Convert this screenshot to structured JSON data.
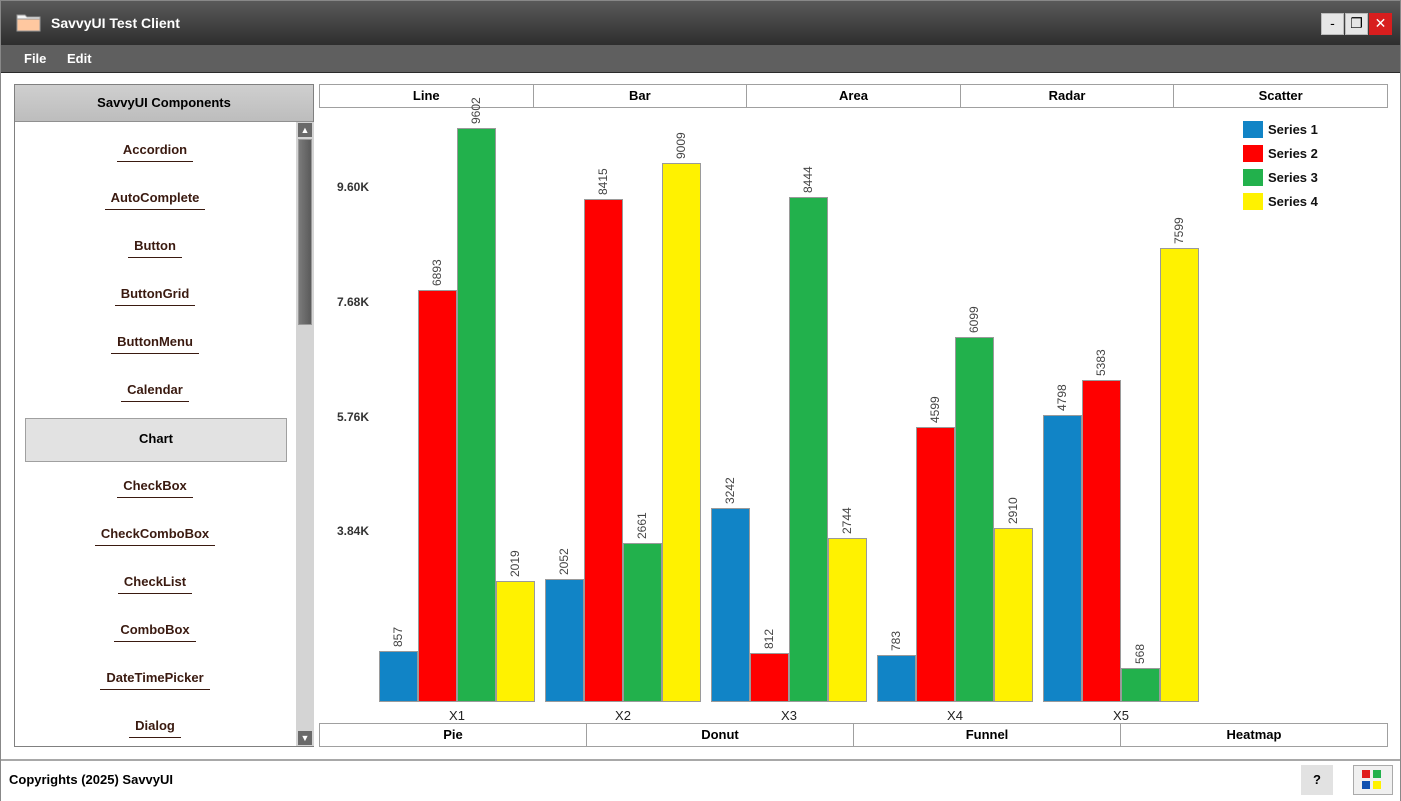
{
  "window": {
    "title": "SavvyUI Test Client",
    "buttons": {
      "minimize": "-",
      "maximize": "❐",
      "close": "✕"
    }
  },
  "menu": {
    "items": [
      "File",
      "Edit"
    ]
  },
  "sidebar": {
    "header": "SavvyUI Components",
    "items": [
      "Accordion",
      "AutoComplete",
      "Button",
      "ButtonGrid",
      "ButtonMenu",
      "Calendar",
      "Chart",
      "CheckBox",
      "CheckComboBox",
      "CheckList",
      "ComboBox",
      "DateTimePicker",
      "Dialog"
    ],
    "active": "Chart",
    "scroll": {
      "up_icon": "▲",
      "down_icon": "▼"
    }
  },
  "tabs_top": [
    "Line",
    "Bar",
    "Area",
    "Radar",
    "Scatter"
  ],
  "tabs_bottom": [
    "Pie",
    "Donut",
    "Funnel",
    "Heatmap"
  ],
  "footer": {
    "copyright": "Copyrights (2025) SavvyUI",
    "help": "?"
  },
  "colors": {
    "series1": "#1184c6",
    "series2": "#ff0000",
    "series3": "#22b14c",
    "series4": "#fff200"
  },
  "chart_data": {
    "type": "bar",
    "title": "",
    "xlabel": "",
    "ylabel": "",
    "categories": [
      "X1",
      "X2",
      "X3",
      "X4",
      "X5"
    ],
    "series": [
      {
        "name": "Series 1",
        "color": "#1184c6",
        "values": [
          857,
          2052,
          3242,
          783,
          4798
        ]
      },
      {
        "name": "Series 2",
        "color": "#ff0000",
        "values": [
          6893,
          8415,
          812,
          4599,
          5383
        ]
      },
      {
        "name": "Series 3",
        "color": "#22b14c",
        "values": [
          9602,
          2661,
          8444,
          6099,
          568
        ]
      },
      {
        "name": "Series 4",
        "color": "#fff200",
        "values": [
          2019,
          9009,
          2744,
          2910,
          7599
        ]
      }
    ],
    "y_ticks": [
      "3.84K",
      "5.76K",
      "7.68K",
      "9.60K"
    ],
    "legend_position": "top-right",
    "grid": false,
    "data_labels": true
  }
}
